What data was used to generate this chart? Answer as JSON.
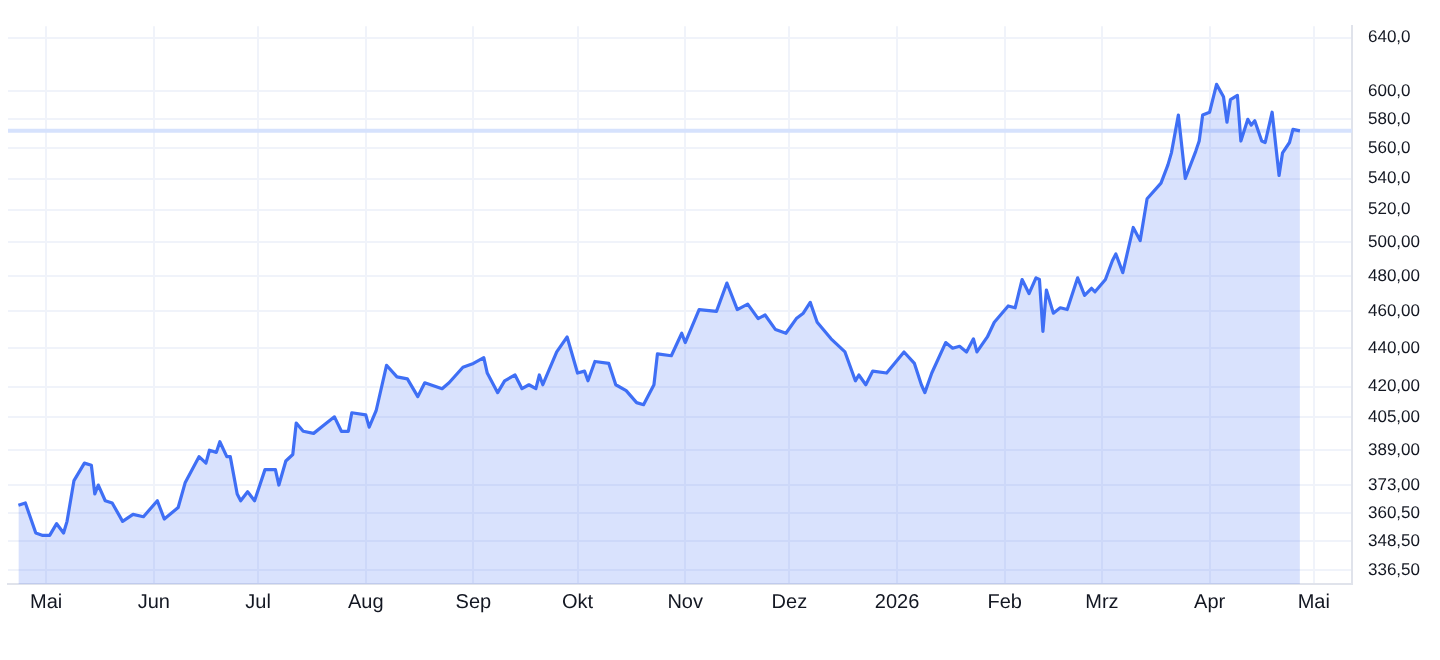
{
  "chart_data": {
    "type": "area",
    "log": "y",
    "grid": true,
    "marker": "none",
    "xlim": [
      "2025-04-20",
      "2026-05-12"
    ],
    "xticks": [
      {
        "value": "2025-05-01",
        "label": "Mai"
      },
      {
        "value": "2025-06-01",
        "label": "Jun"
      },
      {
        "value": "2025-07-01",
        "label": "Jul"
      },
      {
        "value": "2025-08-01",
        "label": "Aug"
      },
      {
        "value": "2025-09-01",
        "label": "Sep"
      },
      {
        "value": "2025-10-01",
        "label": "Okt"
      },
      {
        "value": "2025-11-01",
        "label": "Nov"
      },
      {
        "value": "2025-12-01",
        "label": "Dez"
      },
      {
        "value": "2026-01-01",
        "label": "2026"
      },
      {
        "value": "2026-02-01",
        "label": "Feb"
      },
      {
        "value": "2026-03-01",
        "label": "Mrz"
      },
      {
        "value": "2026-04-01",
        "label": "Apr"
      },
      {
        "value": "2026-05-01",
        "label": "Mai"
      }
    ],
    "ylim": [
      331,
      649
    ],
    "yticks": [
      {
        "value": 336.5,
        "label": "336,50"
      },
      {
        "value": 348.5,
        "label": "348,50"
      },
      {
        "value": 360.5,
        "label": "360,50"
      },
      {
        "value": 373,
        "label": "373,00"
      },
      {
        "value": 389,
        "label": "389,00"
      },
      {
        "value": 405,
        "label": "405,00"
      },
      {
        "value": 420,
        "label": "420,00"
      },
      {
        "value": 440,
        "label": "440,00"
      },
      {
        "value": 460,
        "label": "460,00"
      },
      {
        "value": 480,
        "label": "480,00"
      },
      {
        "value": 500,
        "label": "500,00"
      },
      {
        "value": 520,
        "label": "520,0"
      },
      {
        "value": 540,
        "label": "540,0"
      },
      {
        "value": 560,
        "label": "560,0"
      },
      {
        "value": 580,
        "label": "580,0"
      },
      {
        "value": 600,
        "label": "600,0"
      },
      {
        "value": 640,
        "label": "640,0"
      }
    ],
    "ref_lines": [
      {
        "axis": "y",
        "value": 572,
        "color": "#d6e2fd"
      }
    ],
    "x": [
      "2025-04-23",
      "2025-04-25",
      "2025-04-28",
      "2025-04-30",
      "2025-05-02",
      "2025-05-04",
      "2025-05-06",
      "2025-05-07",
      "2025-05-09",
      "2025-05-12",
      "2025-05-14",
      "2025-05-15",
      "2025-05-16",
      "2025-05-18",
      "2025-05-20",
      "2025-05-23",
      "2025-05-26",
      "2025-05-29",
      "2025-06-02",
      "2025-06-04",
      "2025-06-08",
      "2025-06-10",
      "2025-06-14",
      "2025-06-16",
      "2025-06-17",
      "2025-06-19",
      "2025-06-20",
      "2025-06-22",
      "2025-06-23",
      "2025-06-25",
      "2025-06-26",
      "2025-06-28",
      "2025-06-30",
      "2025-07-03",
      "2025-07-06",
      "2025-07-07",
      "2025-07-09",
      "2025-07-11",
      "2025-07-12",
      "2025-07-14",
      "2025-07-17",
      "2025-07-20",
      "2025-07-23",
      "2025-07-25",
      "2025-07-27",
      "2025-07-28",
      "2025-08-01",
      "2025-08-02",
      "2025-08-04",
      "2025-08-07",
      "2025-08-10",
      "2025-08-13",
      "2025-08-16",
      "2025-08-18",
      "2025-08-23",
      "2025-08-25",
      "2025-08-29",
      "2025-09-01",
      "2025-09-04",
      "2025-09-05",
      "2025-09-08",
      "2025-09-10",
      "2025-09-13",
      "2025-09-15",
      "2025-09-17",
      "2025-09-19",
      "2025-09-20",
      "2025-09-21",
      "2025-09-25",
      "2025-09-28",
      "2025-10-01",
      "2025-10-03",
      "2025-10-04",
      "2025-10-06",
      "2025-10-10",
      "2025-10-12",
      "2025-10-15",
      "2025-10-18",
      "2025-10-20",
      "2025-10-23",
      "2025-10-24",
      "2025-10-28",
      "2025-10-31",
      "2025-11-01",
      "2025-11-05",
      "2025-11-10",
      "2025-11-13",
      "2025-11-16",
      "2025-11-19",
      "2025-11-22",
      "2025-11-24",
      "2025-11-27",
      "2025-11-30",
      "2025-12-03",
      "2025-12-05",
      "2025-12-07",
      "2025-12-09",
      "2025-12-13",
      "2025-12-17",
      "2025-12-20",
      "2025-12-21",
      "2025-12-23",
      "2025-12-25",
      "2025-12-29",
      "2026-01-03",
      "2026-01-06",
      "2026-01-08",
      "2026-01-09",
      "2026-01-11",
      "2026-01-15",
      "2026-01-17",
      "2026-01-19",
      "2026-01-21",
      "2026-01-23",
      "2026-01-24",
      "2026-01-27",
      "2026-01-29",
      "2026-02-02",
      "2026-02-04",
      "2026-02-06",
      "2026-02-08",
      "2026-02-10",
      "2026-02-11",
      "2026-02-12",
      "2026-02-13",
      "2026-02-15",
      "2026-02-17",
      "2026-02-19",
      "2026-02-22",
      "2026-02-24",
      "2026-02-26",
      "2026-02-27",
      "2026-03-02",
      "2026-03-04",
      "2026-03-05",
      "2026-03-07",
      "2026-03-10",
      "2026-03-12",
      "2026-03-14",
      "2026-03-18",
      "2026-03-20",
      "2026-03-21",
      "2026-03-23",
      "2026-03-25",
      "2026-03-28",
      "2026-03-29",
      "2026-03-30",
      "2026-04-01",
      "2026-04-03",
      "2026-04-05",
      "2026-04-06",
      "2026-04-07",
      "2026-04-09",
      "2026-04-10",
      "2026-04-12",
      "2026-04-13",
      "2026-04-14",
      "2026-04-16",
      "2026-04-17",
      "2026-04-19",
      "2026-04-21",
      "2026-04-22",
      "2026-04-24",
      "2026-04-25",
      "2026-04-27"
    ],
    "series": [
      {
        "color": "#3f6ff5",
        "values": [
          364,
          365,
          352,
          351,
          351,
          356,
          352,
          357,
          375,
          383,
          382,
          369,
          373,
          366,
          365,
          357,
          360,
          359,
          366,
          358,
          363,
          374,
          386,
          383,
          389,
          388,
          393,
          386,
          386,
          369,
          366,
          370,
          366,
          380,
          380,
          373,
          384,
          387,
          402,
          398,
          397,
          401,
          405,
          398,
          398,
          407,
          406,
          400,
          408,
          431,
          425,
          424,
          415,
          422,
          419,
          422,
          430,
          432,
          435,
          427,
          417,
          423,
          426,
          419,
          421,
          419,
          426,
          421,
          438,
          446,
          427,
          428,
          423,
          433,
          432,
          421,
          418,
          412,
          411,
          421,
          437,
          436,
          448,
          443,
          461,
          460,
          476,
          461,
          464,
          456,
          458,
          450,
          448,
          456,
          459,
          465,
          454,
          445,
          438,
          423,
          426,
          421,
          428,
          427,
          438,
          432,
          421,
          417,
          427,
          443,
          440,
          441,
          438,
          445,
          438,
          446,
          454,
          463,
          462,
          478,
          470,
          479,
          478,
          449,
          472,
          459,
          462,
          461,
          479,
          469,
          473,
          471,
          478,
          489,
          493,
          482,
          509,
          501,
          527,
          537,
          549,
          557,
          583,
          540,
          558,
          565,
          583,
          585,
          605,
          596,
          578,
          594,
          597,
          565,
          580,
          576,
          579,
          565,
          564,
          585,
          542,
          557,
          564,
          573,
          572
        ]
      }
    ]
  }
}
